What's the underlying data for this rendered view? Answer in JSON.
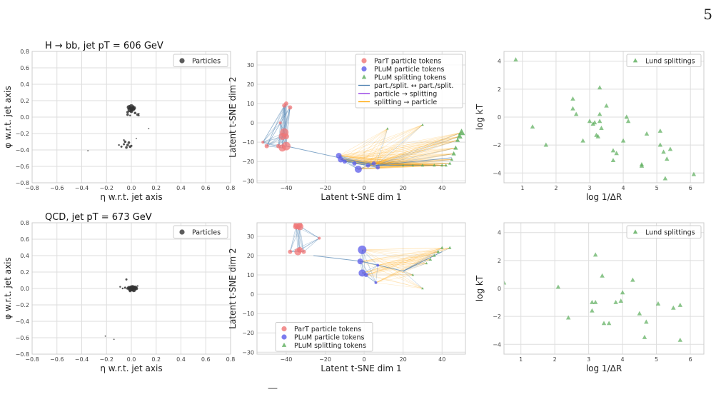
{
  "page_number": "5",
  "caption_fragment": "—",
  "colors": {
    "particles": "#333333",
    "part_tokens": "#f07575",
    "plum_particle": "#5b5bea",
    "plum_split": "#5aac5a",
    "line_pp": "#4a7fb0",
    "line_ps": "#8a2be2",
    "line_sp": "#ffa500",
    "lund": "#5aac5a"
  },
  "chart_data": [
    {
      "type": "scatter",
      "title": "H → bb, jet pT = 606 GeV",
      "xlabel": "η w.r.t. jet axis",
      "ylabel": "φ w.r.t. jet axis",
      "xlim": [
        -0.8,
        0.8
      ],
      "ylim": [
        -0.8,
        0.8
      ],
      "xticks": [
        "−0.8",
        "−0.6",
        "−0.4",
        "−0.2",
        "0.0",
        "0.2",
        "0.4",
        "0.6",
        "0.8"
      ],
      "yticks": [
        "−0.8",
        "−0.6",
        "−0.4",
        "−0.2",
        "0.0",
        "0.2",
        "0.4",
        "0.6",
        "0.8"
      ],
      "grid": true,
      "legend": "top-right",
      "legend_entries": [
        "Particles"
      ],
      "points": [
        [
          0.0,
          0.12,
          7
        ],
        [
          0.01,
          0.1,
          6
        ],
        [
          -0.01,
          0.09,
          6
        ],
        [
          0.02,
          0.11,
          5
        ],
        [
          -0.02,
          0.12,
          5
        ],
        [
          0.0,
          0.07,
          4
        ],
        [
          0.03,
          0.05,
          3
        ],
        [
          -0.03,
          0.03,
          3
        ],
        [
          0.05,
          0.03,
          3
        ],
        [
          0.06,
          0.02,
          2
        ],
        [
          0.06,
          0.04,
          2
        ],
        [
          -0.03,
          0.06,
          3
        ],
        [
          -0.01,
          0.02,
          2
        ],
        [
          0.14,
          -0.14,
          1.5
        ],
        [
          0.04,
          -0.26,
          1.5
        ],
        [
          -0.05,
          -0.3,
          3
        ],
        [
          -0.02,
          -0.31,
          3
        ],
        [
          -0.03,
          -0.34,
          3
        ],
        [
          -0.06,
          -0.33,
          2.5
        ],
        [
          -0.08,
          -0.36,
          2.5
        ],
        [
          -0.01,
          -0.36,
          3
        ],
        [
          -0.04,
          -0.37,
          3
        ],
        [
          0.0,
          -0.35,
          2.5
        ],
        [
          -0.1,
          -0.34,
          2
        ],
        [
          -0.06,
          -0.28,
          2
        ],
        [
          -0.35,
          -0.41,
          1.5
        ]
      ]
    },
    {
      "type": "scatter",
      "title": "",
      "xlabel": "Latent t-SNE dim 1",
      "ylabel": "Latent t-SNE dim 2",
      "xlim": [
        -55,
        52
      ],
      "ylim": [
        -31,
        37
      ],
      "xticks": [
        "−40",
        "−20",
        "0",
        "20",
        "40"
      ],
      "xtick_values": [
        -40,
        -20,
        0,
        20,
        40
      ],
      "yticks": [
        "−30",
        "−20",
        "−10",
        "0",
        "10",
        "20",
        "30"
      ],
      "ytick_values": [
        -30,
        -20,
        -10,
        0,
        10,
        20,
        30
      ],
      "grid": true,
      "legend": "top-right",
      "legend_entries": [
        {
          "label": "ParT particle tokens",
          "marker": "circle",
          "color": "#f07575"
        },
        {
          "label": "PLuM particle tokens",
          "marker": "circle",
          "color": "#5b5bea"
        },
        {
          "label": "PLuM splitting tokens",
          "marker": "triangle",
          "color": "#5aac5a"
        },
        {
          "label": "part./split. ↔ part./split.",
          "marker": "line",
          "color": "#4a7fb0"
        },
        {
          "label": "particle → splitting",
          "marker": "line",
          "color": "#8a2be2"
        },
        {
          "label": "splitting → particle",
          "marker": "line",
          "color": "#ffa500"
        }
      ],
      "part_tokens": [
        [
          -40,
          10,
          3
        ],
        [
          -41,
          9,
          3
        ],
        [
          -38,
          8,
          3
        ],
        [
          -41,
          -5,
          6
        ],
        [
          -42,
          -7,
          5
        ],
        [
          -40,
          -7,
          4
        ],
        [
          -40,
          -12,
          6
        ],
        [
          -42,
          -13,
          5
        ],
        [
          -44,
          -12,
          3
        ],
        [
          -50,
          -12,
          3
        ],
        [
          -52,
          -10,
          2
        ],
        [
          -43,
          0,
          2
        ]
      ],
      "plum_particle": [
        [
          -13,
          -17,
          4
        ],
        [
          -12,
          -19,
          4
        ],
        [
          -10,
          -20,
          3
        ],
        [
          -5,
          -21,
          3
        ],
        [
          -3,
          -24,
          5
        ],
        [
          2,
          -22,
          3
        ],
        [
          5,
          -21,
          3
        ],
        [
          7,
          -23,
          3
        ]
      ],
      "plum_split": [
        [
          50,
          -5,
          5
        ],
        [
          49,
          -7,
          4
        ],
        [
          48,
          -9,
          3
        ],
        [
          47,
          -13,
          3
        ],
        [
          46,
          -16,
          3
        ],
        [
          45,
          -19,
          2
        ],
        [
          44,
          -21,
          2
        ],
        [
          42,
          -22,
          2
        ],
        [
          40,
          -22,
          2
        ],
        [
          36,
          -22,
          2
        ],
        [
          30,
          -22,
          2
        ],
        [
          25,
          -22,
          1.5
        ],
        [
          20,
          -22,
          1.5
        ],
        [
          12,
          -3,
          1.5
        ],
        [
          30,
          -1,
          1.5
        ]
      ],
      "hub_links": [
        [
          -40,
          -12
        ],
        [
          -13,
          -18
        ],
        [
          6,
          -22
        ],
        [
          45,
          -18
        ]
      ]
    },
    {
      "type": "scatter",
      "title": "",
      "xlabel": "log 1/ΔR",
      "ylabel": "log kT",
      "xlim": [
        0.45,
        6.4
      ],
      "ylim": [
        -4.7,
        4.7
      ],
      "xticks": [
        "1",
        "2",
        "3",
        "4",
        "5",
        "6"
      ],
      "xtick_values": [
        1,
        2,
        3,
        4,
        5,
        6
      ],
      "yticks": [
        "−4",
        "−2",
        "0",
        "2",
        "4"
      ],
      "ytick_values": [
        -4,
        -2,
        0,
        2,
        4
      ],
      "grid": true,
      "legend": "top-right",
      "legend_entries": [
        "Lund splittings"
      ],
      "points": [
        [
          0.8,
          4.1
        ],
        [
          1.3,
          -0.7
        ],
        [
          1.7,
          -2.0
        ],
        [
          2.5,
          1.3
        ],
        [
          2.5,
          0.6
        ],
        [
          2.6,
          0.2
        ],
        [
          2.8,
          -1.7
        ],
        [
          3.0,
          -0.3
        ],
        [
          3.1,
          -0.5
        ],
        [
          3.15,
          -0.4
        ],
        [
          3.2,
          -1.3
        ],
        [
          3.25,
          -1.4
        ],
        [
          3.3,
          -0.3
        ],
        [
          3.3,
          0.2
        ],
        [
          3.3,
          2.1
        ],
        [
          3.35,
          -0.8
        ],
        [
          3.5,
          0.8
        ],
        [
          3.7,
          -2.4
        ],
        [
          3.7,
          -3.1
        ],
        [
          3.8,
          -2.6
        ],
        [
          4.0,
          -1.7
        ],
        [
          4.1,
          0.0
        ],
        [
          4.15,
          -0.3
        ],
        [
          4.55,
          -3.4
        ],
        [
          4.55,
          -3.5
        ],
        [
          4.7,
          -1.2
        ],
        [
          5.1,
          -1.0
        ],
        [
          5.1,
          -2.0
        ],
        [
          5.2,
          -2.5
        ],
        [
          5.25,
          -4.4
        ],
        [
          5.3,
          -3.0
        ],
        [
          5.4,
          -2.3
        ],
        [
          6.1,
          -4.1
        ]
      ]
    },
    {
      "type": "scatter",
      "title": "QCD, jet pT = 673 GeV",
      "xlabel": "η w.r.t. jet axis",
      "ylabel": "φ w.r.t. jet axis",
      "xlim": [
        -0.8,
        0.8
      ],
      "ylim": [
        -0.8,
        0.8
      ],
      "xticks": [
        "−0.8",
        "−0.6",
        "−0.4",
        "−0.2",
        "0.0",
        "0.2",
        "0.4",
        "0.6",
        "0.8"
      ],
      "yticks": [
        "−0.8",
        "−0.6",
        "−0.4",
        "−0.2",
        "0.0",
        "0.2",
        "0.4",
        "0.6",
        "0.8"
      ],
      "grid": true,
      "legend": "top-right",
      "legend_entries": [
        "Particles"
      ],
      "points": [
        [
          0.0,
          0.0,
          7
        ],
        [
          0.02,
          0.0,
          6
        ],
        [
          0.01,
          0.01,
          6
        ],
        [
          -0.01,
          -0.01,
          5
        ],
        [
          0.03,
          0.01,
          5
        ],
        [
          0.02,
          -0.02,
          5
        ],
        [
          0.04,
          0.0,
          4
        ],
        [
          -0.02,
          0.01,
          4
        ],
        [
          -0.03,
          0.0,
          3
        ],
        [
          -0.05,
          0.01,
          2.5
        ],
        [
          -0.07,
          0.0,
          2
        ],
        [
          -0.09,
          0.02,
          2
        ],
        [
          -0.04,
          0.11,
          2.5
        ],
        [
          0.05,
          0.03,
          2
        ],
        [
          -0.01,
          -0.03,
          3
        ],
        [
          -0.21,
          -0.58,
          1.5
        ],
        [
          -0.14,
          -0.62,
          1.5
        ]
      ]
    },
    {
      "type": "scatter",
      "title": "",
      "xlabel": "Latent t-SNE dim 1",
      "ylabel": "Latent t-SNE dim 2",
      "xlim": [
        -55,
        52
      ],
      "ylim": [
        -31,
        37
      ],
      "xticks": [
        "−40",
        "−20",
        "0",
        "20",
        "40"
      ],
      "xtick_values": [
        -40,
        -20,
        0,
        20,
        40
      ],
      "yticks": [
        "−30",
        "−20",
        "−10",
        "0",
        "10",
        "20",
        "30"
      ],
      "ytick_values": [
        -30,
        -20,
        -10,
        0,
        10,
        20,
        30
      ],
      "grid": true,
      "legend": "bottom-left",
      "legend_entries": [
        {
          "label": "ParT particle tokens",
          "marker": "circle",
          "color": "#f07575"
        },
        {
          "label": "PLuM particle tokens",
          "marker": "circle",
          "color": "#5b5bea"
        },
        {
          "label": "PLuM splitting tokens",
          "marker": "triangle",
          "color": "#5aac5a"
        }
      ],
      "part_tokens": [
        [
          -34,
          36,
          6
        ],
        [
          -33,
          35,
          5
        ],
        [
          -35,
          35,
          4
        ],
        [
          -34,
          22,
          5
        ],
        [
          -33,
          23,
          4
        ],
        [
          -38,
          22,
          3
        ],
        [
          -23,
          29,
          2
        ],
        [
          -31,
          22,
          3
        ]
      ],
      "plum_particle": [
        [
          -1,
          23,
          6
        ],
        [
          -2,
          17,
          4
        ],
        [
          -1,
          11,
          5
        ],
        [
          1,
          10,
          3
        ],
        [
          6,
          6,
          2
        ],
        [
          7,
          15,
          2
        ]
      ],
      "plum_split": [
        [
          40,
          24,
          2
        ],
        [
          44,
          24,
          2
        ],
        [
          38,
          22,
          2
        ],
        [
          36,
          20,
          2
        ],
        [
          34,
          18,
          2
        ],
        [
          32,
          16,
          1.5
        ],
        [
          30,
          3,
          1.5
        ],
        [
          25,
          10,
          1.5
        ]
      ],
      "hub_links": [
        [
          -26,
          20
        ],
        [
          -1,
          17
        ],
        [
          20,
          12
        ],
        [
          40,
          22
        ]
      ]
    },
    {
      "type": "scatter",
      "title": "",
      "xlabel": "log 1/ΔR",
      "ylabel": "log kT",
      "xlim": [
        0.5,
        6.4
      ],
      "ylim": [
        -4.7,
        4.7
      ],
      "xticks": [
        "1",
        "2",
        "3",
        "4",
        "5",
        "6"
      ],
      "xtick_values": [
        1,
        2,
        3,
        4,
        5,
        6
      ],
      "yticks": [
        "−4",
        "−2",
        "0",
        "2",
        "4"
      ],
      "ytick_values": [
        -4,
        -2,
        0,
        2,
        4
      ],
      "grid": true,
      "legend": "top-right",
      "legend_entries": [
        "Lund splittings"
      ],
      "points": [
        [
          0.5,
          0.4
        ],
        [
          2.1,
          0.1
        ],
        [
          2.4,
          -2.1
        ],
        [
          3.1,
          -1.0
        ],
        [
          3.1,
          -1.6
        ],
        [
          3.2,
          -1.0
        ],
        [
          3.2,
          2.4
        ],
        [
          3.4,
          0.9
        ],
        [
          3.45,
          -2.5
        ],
        [
          3.6,
          -2.5
        ],
        [
          3.8,
          -1.0
        ],
        [
          3.95,
          -0.9
        ],
        [
          4.0,
          -0.3
        ],
        [
          4.3,
          0.6
        ],
        [
          4.5,
          -1.8
        ],
        [
          4.65,
          -3.5
        ],
        [
          4.7,
          -2.4
        ],
        [
          5.05,
          -1.1
        ],
        [
          5.5,
          -1.4
        ],
        [
          5.7,
          -3.7
        ],
        [
          5.7,
          -1.2
        ]
      ]
    }
  ]
}
